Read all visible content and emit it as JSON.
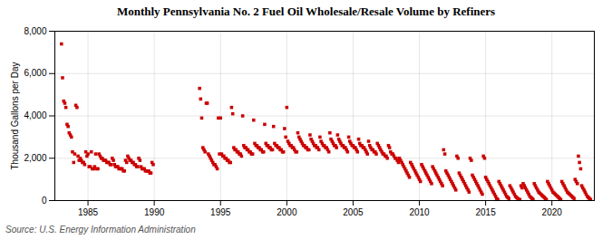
{
  "chart_data": {
    "type": "scatter",
    "title": "Monthly Pennsylvania No. 2 Fuel Oil Wholesale/Resale Volume by Refiners",
    "ylabel": "Thousand Gallons per Day",
    "source": "Source: U.S. Energy Information Administration",
    "color": "#cc0000",
    "marker": "square",
    "grid": true,
    "xlim": [
      1982.5,
      2023.2
    ],
    "xticks": [
      1985,
      1990,
      1995,
      2000,
      2005,
      2010,
      2015,
      2020
    ],
    "ylim": [
      0,
      8000
    ],
    "yticks": [
      0,
      {
        "value": 2000,
        "label": "2,000"
      },
      {
        "value": 4000,
        "label": "4,000"
      },
      {
        "value": 6000,
        "label": "6,000"
      },
      {
        "value": 8000,
        "label": "8,000"
      }
    ],
    "x": [
      1983.0,
      1983.08,
      1983.17,
      1983.25,
      1983.33,
      1983.42,
      1983.5,
      1983.58,
      1983.67,
      1983.75,
      1983.83,
      1983.92,
      1984.0,
      1984.08,
      1984.17,
      1984.25,
      1984.33,
      1984.42,
      1984.5,
      1984.58,
      1984.67,
      1984.75,
      1984.83,
      1984.92,
      1985.0,
      1985.08,
      1985.17,
      1985.25,
      1985.33,
      1985.42,
      1985.5,
      1985.58,
      1985.67,
      1985.75,
      1985.83,
      1985.92,
      1986.0,
      1986.08,
      1986.17,
      1986.25,
      1986.33,
      1986.42,
      1986.5,
      1986.58,
      1986.67,
      1986.75,
      1986.83,
      1986.92,
      1987.0,
      1987.08,
      1987.17,
      1987.25,
      1987.33,
      1987.42,
      1987.5,
      1987.58,
      1987.67,
      1987.75,
      1987.83,
      1987.92,
      1988.0,
      1988.08,
      1988.17,
      1988.25,
      1988.33,
      1988.42,
      1988.5,
      1988.58,
      1988.67,
      1988.75,
      1988.83,
      1988.92,
      1989.0,
      1989.08,
      1989.17,
      1989.25,
      1989.33,
      1989.42,
      1989.5,
      1989.58,
      1989.67,
      1989.75,
      1989.83,
      1989.92,
      1993.42,
      1993.5,
      1993.58,
      1993.67,
      1993.75,
      1993.83,
      1993.92,
      1994.0,
      1994.08,
      1994.17,
      1994.25,
      1994.33,
      1994.42,
      1994.5,
      1994.58,
      1994.67,
      1994.75,
      1994.83,
      1994.92,
      1995.0,
      1995.08,
      1995.17,
      1995.25,
      1995.33,
      1995.42,
      1995.5,
      1995.58,
      1995.67,
      1995.75,
      1995.83,
      1995.92,
      1996.0,
      1996.08,
      1996.17,
      1996.25,
      1996.33,
      1996.42,
      1996.5,
      1996.58,
      1996.67,
      1996.75,
      1996.83,
      1996.92,
      1997.0,
      1997.08,
      1997.17,
      1997.25,
      1997.33,
      1997.42,
      1997.5,
      1997.58,
      1997.67,
      1997.75,
      1997.83,
      1997.92,
      1998.0,
      1998.08,
      1998.17,
      1998.25,
      1998.33,
      1998.42,
      1998.5,
      1998.58,
      1998.67,
      1998.75,
      1998.83,
      1998.92,
      1999.0,
      1999.08,
      1999.17,
      1999.25,
      1999.33,
      1999.42,
      1999.5,
      1999.58,
      1999.67,
      1999.75,
      1999.83,
      1999.92,
      2000.0,
      2000.08,
      2000.17,
      2000.25,
      2000.33,
      2000.42,
      2000.5,
      2000.58,
      2000.67,
      2000.75,
      2000.83,
      2000.92,
      2001.0,
      2001.08,
      2001.17,
      2001.25,
      2001.33,
      2001.42,
      2001.5,
      2001.58,
      2001.67,
      2001.75,
      2001.83,
      2001.92,
      2002.0,
      2002.08,
      2002.17,
      2002.25,
      2002.33,
      2002.42,
      2002.5,
      2002.58,
      2002.67,
      2002.75,
      2002.83,
      2002.92,
      2003.0,
      2003.08,
      2003.17,
      2003.25,
      2003.33,
      2003.42,
      2003.5,
      2003.58,
      2003.67,
      2003.75,
      2003.83,
      2003.92,
      2004.0,
      2004.08,
      2004.17,
      2004.25,
      2004.33,
      2004.42,
      2004.5,
      2004.58,
      2004.67,
      2004.75,
      2004.83,
      2004.92,
      2005.0,
      2005.08,
      2005.17,
      2005.25,
      2005.33,
      2005.42,
      2005.5,
      2005.58,
      2005.67,
      2005.75,
      2005.83,
      2005.92,
      2006.0,
      2006.08,
      2006.17,
      2006.25,
      2006.33,
      2006.42,
      2006.5,
      2006.58,
      2006.67,
      2006.75,
      2006.83,
      2006.92,
      2007.0,
      2007.08,
      2007.17,
      2007.25,
      2007.33,
      2007.42,
      2007.5,
      2007.58,
      2007.67,
      2007.75,
      2007.83,
      2007.92,
      2008.0,
      2008.08,
      2008.17,
      2008.25,
      2008.33,
      2008.42,
      2008.5,
      2008.58,
      2008.67,
      2008.75,
      2008.83,
      2008.92,
      2009.0,
      2009.08,
      2009.17,
      2009.25,
      2009.33,
      2009.42,
      2009.5,
      2009.58,
      2009.67,
      2009.75,
      2009.83,
      2009.92,
      2010.0,
      2010.08,
      2010.17,
      2010.25,
      2010.33,
      2010.42,
      2010.5,
      2010.58,
      2010.67,
      2010.75,
      2010.83,
      2010.92,
      2011.0,
      2011.08,
      2011.17,
      2011.25,
      2011.33,
      2011.42,
      2011.5,
      2011.58,
      2011.67,
      2011.75,
      2011.83,
      2011.92,
      2012.0,
      2012.08,
      2012.17,
      2012.25,
      2012.33,
      2012.42,
      2012.5,
      2012.58,
      2012.67,
      2012.75,
      2012.83,
      2012.92,
      2013.0,
      2013.08,
      2013.17,
      2013.25,
      2013.33,
      2013.42,
      2013.5,
      2013.58,
      2013.67,
      2013.75,
      2013.83,
      2013.92,
      2014.0,
      2014.08,
      2014.17,
      2014.25,
      2014.33,
      2014.42,
      2014.5,
      2014.58,
      2014.67,
      2014.75,
      2014.83,
      2014.92,
      2015.0,
      2015.08,
      2015.17,
      2015.25,
      2015.33,
      2015.42,
      2015.5,
      2015.58,
      2015.67,
      2015.75,
      2015.83,
      2015.92,
      2016.0,
      2016.08,
      2016.17,
      2016.25,
      2016.33,
      2016.42,
      2016.5,
      2016.58,
      2016.67,
      2016.75,
      2016.83,
      2016.92,
      2017.0,
      2017.08,
      2017.17,
      2017.25,
      2017.33,
      2017.42,
      2017.5,
      2017.58,
      2017.67,
      2017.75,
      2017.83,
      2017.92,
      2018.0,
      2018.08,
      2018.17,
      2018.25,
      2018.33,
      2018.42,
      2018.5,
      2018.58,
      2018.67,
      2018.75,
      2018.83,
      2018.92,
      2019.0,
      2019.08,
      2019.17,
      2019.25,
      2019.33,
      2019.42,
      2019.5,
      2019.58,
      2019.67,
      2019.75,
      2019.83,
      2019.92,
      2020.0,
      2020.08,
      2020.17,
      2020.25,
      2020.33,
      2020.42,
      2020.5,
      2020.58,
      2020.67,
      2020.75,
      2020.83,
      2020.92,
      2021.0,
      2021.08,
      2021.17,
      2021.25,
      2021.33,
      2021.42,
      2021.5,
      2021.58,
      2021.67,
      2021.75,
      2021.83,
      2021.92,
      2022.0,
      2022.08,
      2022.17,
      2022.25,
      2022.33,
      2022.42,
      2022.5,
      2022.58,
      2022.67,
      2022.75,
      2022.83,
      2022.92
    ],
    "values": [
      7400,
      5800,
      4700,
      4600,
      4400,
      3600,
      3500,
      3200,
      3100,
      3000,
      2300,
      1800,
      2200,
      4500,
      4400,
      2100,
      1900,
      2000,
      1900,
      1800,
      1800,
      1700,
      2300,
      2100,
      2200,
      1600,
      1600,
      2300,
      1500,
      1500,
      1600,
      2200,
      1500,
      1500,
      2200,
      2100,
      2000,
      2000,
      1900,
      1900,
      1900,
      1800,
      1800,
      1800,
      1700,
      1700,
      2000,
      1900,
      1700,
      1600,
      1600,
      1600,
      1500,
      1500,
      1500,
      1500,
      1400,
      1400,
      1900,
      1800,
      2100,
      2000,
      1900,
      1900,
      1800,
      1800,
      1700,
      1700,
      1600,
      1600,
      2000,
      1900,
      1600,
      1500,
      1500,
      1500,
      1400,
      1400,
      1400,
      1400,
      1300,
      1300,
      1800,
      1700,
      5300,
      4800,
      3900,
      2500,
      2400,
      2300,
      4600,
      4600,
      2200,
      2100,
      2000,
      1900,
      1800,
      1700,
      1700,
      1600,
      1500,
      3900,
      2200,
      3900,
      2200,
      2100,
      2100,
      2000,
      2000,
      1900,
      1900,
      1800,
      1800,
      4400,
      4100,
      2500,
      2400,
      2400,
      2300,
      2300,
      2200,
      2200,
      2100,
      4000,
      2600,
      2500,
      2500,
      2400,
      2400,
      2300,
      2300,
      2200,
      2200,
      3800,
      2700,
      2600,
      2600,
      2500,
      2500,
      2400,
      2400,
      2300,
      2300,
      3600,
      2700,
      2600,
      2600,
      2500,
      2500,
      2400,
      2400,
      3500,
      2700,
      2600,
      2600,
      2500,
      2500,
      2400,
      2400,
      2300,
      2300,
      3400,
      3000,
      4400,
      2800,
      2700,
      2600,
      2600,
      2500,
      2500,
      2400,
      2300,
      2300,
      3200,
      3000,
      2900,
      2800,
      2700,
      2600,
      2600,
      2500,
      2500,
      2400,
      2400,
      3100,
      2900,
      2800,
      2700,
      2600,
      2600,
      2500,
      2500,
      2400,
      3000,
      2800,
      2700,
      2600,
      2600,
      2500,
      2500,
      2400,
      2300,
      3200,
      2900,
      2800,
      2700,
      2600,
      2600,
      2500,
      3100,
      2900,
      2800,
      2700,
      2600,
      2600,
      2500,
      2500,
      2400,
      2300,
      3000,
      2800,
      2700,
      2600,
      2600,
      2500,
      2500,
      2400,
      2300,
      2900,
      2700,
      2600,
      2600,
      2500,
      2500,
      2400,
      2300,
      2200,
      2800,
      2600,
      2500,
      2400,
      2400,
      2300,
      2300,
      2200,
      2700,
      2600,
      2500,
      2400,
      2300,
      2200,
      2200,
      2100,
      2100,
      2000,
      2600,
      2500,
      2300,
      2200,
      2200,
      2100,
      2000,
      2000,
      1900,
      1800,
      2000,
      1900,
      1800,
      1700,
      1600,
      1500,
      1400,
      1300,
      1200,
      1100,
      1800,
      1700,
      1600,
      1500,
      1400,
      1300,
      1200,
      1100,
      1000,
      900,
      1700,
      1600,
      1500,
      1400,
      1300,
      1200,
      1100,
      1000,
      900,
      800,
      1600,
      1500,
      1400,
      1300,
      1200,
      1100,
      1000,
      900,
      800,
      700,
      2400,
      2200,
      1400,
      1300,
      1200,
      1100,
      1000,
      900,
      800,
      700,
      600,
      500,
      2100,
      2000,
      1300,
      1200,
      1100,
      1000,
      900,
      800,
      700,
      600,
      500,
      400,
      2000,
      1900,
      1200,
      1100,
      1000,
      900,
      800,
      700,
      600,
      500,
      400,
      300,
      2100,
      2000,
      1100,
      1000,
      900,
      800,
      700,
      600,
      500,
      400,
      300,
      200,
      100,
      50,
      900,
      800,
      700,
      600,
      500,
      400,
      300,
      200,
      150,
      100,
      700,
      600,
      500,
      400,
      300,
      200,
      150,
      100,
      50,
      50,
      700,
      600,
      800,
      700,
      600,
      500,
      400,
      300,
      200,
      150,
      100,
      50,
      800,
      700,
      600,
      500,
      400,
      350,
      300,
      250,
      200,
      150,
      100,
      50,
      900,
      800,
      700,
      600,
      500,
      400,
      350,
      300,
      250,
      200,
      150,
      100,
      50,
      900,
      800,
      700,
      600,
      500,
      400,
      350,
      300,
      250,
      200,
      150,
      100,
      1000,
      900,
      800,
      2100,
      1800,
      1500,
      700,
      600,
      500,
      400,
      300,
      200,
      150,
      100,
      50
    ]
  }
}
